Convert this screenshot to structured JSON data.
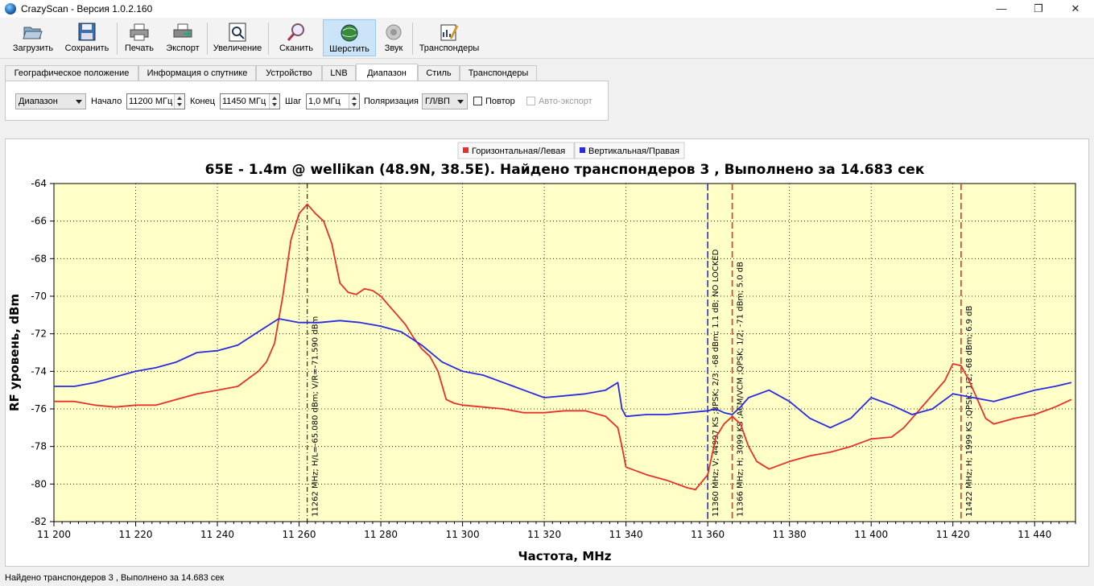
{
  "window": {
    "title": "CrazyScan - Версия 1.0.2.160",
    "minimize": "—",
    "maximize": "❐",
    "close": "✕"
  },
  "toolbar": {
    "load": "Загрузить",
    "save": "Сохранить",
    "print": "Печать",
    "export": "Экспорт",
    "zoom": "Увеличение",
    "scan": "Сканить",
    "sweep": "Шерстить",
    "sound": "Звук",
    "transponders": "Транспондеры"
  },
  "tabs": [
    "Географическое положение",
    "Информация о спутнике",
    "Устройство",
    "LNB",
    "Диапазон",
    "Стиль",
    "Транспондеры"
  ],
  "active_tab": "Диапазон",
  "range_panel": {
    "mode": "Диапазон",
    "start_label": "Начало",
    "start_value": "11200 МГц",
    "end_label": "Конец",
    "end_value": "11450 МГц",
    "step_label": "Шаг",
    "step_value": "1,0 МГц",
    "polarization_label": "Поляризация",
    "polarization_value": "ГЛ/ВП",
    "repeat_label": "Повтор",
    "autoexport_label": "Авто-экспорт"
  },
  "status": "Найдено транспондеров 3 , Выполнено за 14.683 сек",
  "colors": {
    "horizontal": "#e8302a",
    "vertical": "#2a2ae0",
    "plot_bg": "#ffffc8"
  },
  "chart_data": {
    "type": "line",
    "title": "65E - 1.4m @ wellikan (48.9N, 38.5E). Найдено транспондеров 3 , Выполнено за 14.683 сек",
    "xlabel": "Частота, MHz",
    "ylabel": "RF уровень, dBm",
    "xlim": [
      11200,
      11450
    ],
    "ylim": [
      -82,
      -64
    ],
    "xticks": [
      11200,
      11220,
      11240,
      11260,
      11280,
      11300,
      11320,
      11340,
      11360,
      11380,
      11400,
      11420,
      11440
    ],
    "xtick_labels": [
      "11 200",
      "11 220",
      "11 240",
      "11 260",
      "11 280",
      "11 300",
      "11 320",
      "11 340",
      "11 360",
      "11 380",
      "11 400",
      "11 420",
      "11 440"
    ],
    "yticks": [
      -64,
      -66,
      -68,
      -70,
      -72,
      -74,
      -76,
      -78,
      -80,
      -82
    ],
    "grid": true,
    "legend_position": "top-center",
    "series": [
      {
        "name": "Горизонтальная/Левая",
        "color": "#e8302a",
        "x": [
          11200,
          11205,
          11210,
          11215,
          11220,
          11225,
          11230,
          11235,
          11240,
          11245,
          11250,
          11252,
          11254,
          11256,
          11258,
          11260,
          11262,
          11264,
          11266,
          11268,
          11270,
          11272,
          11274,
          11276,
          11278,
          11280,
          11282,
          11284,
          11286,
          11288,
          11290,
          11292,
          11294,
          11296,
          11298,
          11300,
          11305,
          11310,
          11315,
          11320,
          11325,
          11330,
          11335,
          11338,
          11339,
          11340,
          11345,
          11350,
          11355,
          11357,
          11360,
          11362,
          11364,
          11366,
          11368,
          11370,
          11372,
          11375,
          11380,
          11385,
          11390,
          11395,
          11400,
          11405,
          11408,
          11410,
          11414,
          11418,
          11420,
          11422,
          11424,
          11426,
          11428,
          11430,
          11435,
          11440,
          11445,
          11449
        ],
        "values": [
          -75.6,
          -75.6,
          -75.8,
          -75.9,
          -75.8,
          -75.8,
          -75.5,
          -75.2,
          -75.0,
          -74.8,
          -74.0,
          -73.5,
          -72.5,
          -70.0,
          -67.0,
          -65.6,
          -65.1,
          -65.6,
          -66.0,
          -67.2,
          -69.3,
          -69.8,
          -69.9,
          -69.6,
          -69.7,
          -70.0,
          -70.5,
          -71.0,
          -71.5,
          -72.2,
          -72.8,
          -73.2,
          -74.0,
          -75.5,
          -75.7,
          -75.8,
          -75.9,
          -76.0,
          -76.2,
          -76.2,
          -76.1,
          -76.1,
          -76.4,
          -77.0,
          -78.0,
          -79.1,
          -79.5,
          -79.8,
          -80.2,
          -80.3,
          -79.5,
          -77.5,
          -76.8,
          -76.4,
          -76.8,
          -78.0,
          -78.8,
          -79.2,
          -78.8,
          -78.5,
          -78.3,
          -78.0,
          -77.6,
          -77.5,
          -77.0,
          -76.5,
          -75.5,
          -74.5,
          -73.6,
          -73.7,
          -74.5,
          -75.5,
          -76.5,
          -76.8,
          -76.5,
          -76.3,
          -75.9,
          -75.5
        ]
      },
      {
        "name": "Вертикальная/Правая",
        "color": "#2a2ae0",
        "x": [
          11200,
          11205,
          11210,
          11215,
          11220,
          11225,
          11230,
          11235,
          11240,
          11245,
          11250,
          11255,
          11260,
          11265,
          11270,
          11275,
          11280,
          11285,
          11290,
          11295,
          11298,
          11300,
          11305,
          11310,
          11315,
          11320,
          11325,
          11330,
          11335,
          11338,
          11339,
          11340,
          11345,
          11350,
          11355,
          11360,
          11362,
          11364,
          11366,
          11368,
          11370,
          11375,
          11380,
          11385,
          11390,
          11395,
          11400,
          11405,
          11410,
          11415,
          11420,
          11425,
          11430,
          11435,
          11440,
          11445,
          11449
        ],
        "values": [
          -74.8,
          -74.8,
          -74.6,
          -74.3,
          -74.0,
          -73.8,
          -73.5,
          -73.0,
          -72.9,
          -72.6,
          -71.9,
          -71.2,
          -71.4,
          -71.4,
          -71.3,
          -71.4,
          -71.6,
          -71.9,
          -72.6,
          -73.5,
          -73.8,
          -74.0,
          -74.2,
          -74.6,
          -75.0,
          -75.4,
          -75.3,
          -75.2,
          -75.0,
          -74.6,
          -76.0,
          -76.4,
          -76.3,
          -76.3,
          -76.2,
          -76.1,
          -76.0,
          -76.2,
          -76.3,
          -75.9,
          -75.4,
          -75.0,
          -75.6,
          -76.5,
          -77.0,
          -76.5,
          -75.4,
          -75.8,
          -76.3,
          -76.0,
          -75.2,
          -75.4,
          -75.6,
          -75.3,
          -75.0,
          -74.8,
          -74.6
        ]
      }
    ],
    "markers": [
      {
        "x": 11262,
        "color": "#000000",
        "style": "dashdot",
        "label": "11262 MHz; H/L=-65.080 dBm; V/R=-71.590 dBm"
      },
      {
        "x": 11360,
        "color": "#2a2ae0",
        "style": "dashed",
        "label": "11360 MHz; V; 44997 KS ;8PSK; 2/3; -68 dBm; 1.1 dB; NO LOCKED"
      },
      {
        "x": 11366,
        "color": "#e8302a",
        "style": "dashed",
        "label": "11366 MHz; H; 3099 KS ;ACM/VCM ;QPSK; 1/2; -71 dBm; 5.0 dB"
      },
      {
        "x": 11422,
        "color": "#e8302a",
        "style": "dashed",
        "label": "11422 MHz; H; 1999 KS ;QPSK; 1/2; -68 dBm; 6.9 dB"
      }
    ]
  }
}
